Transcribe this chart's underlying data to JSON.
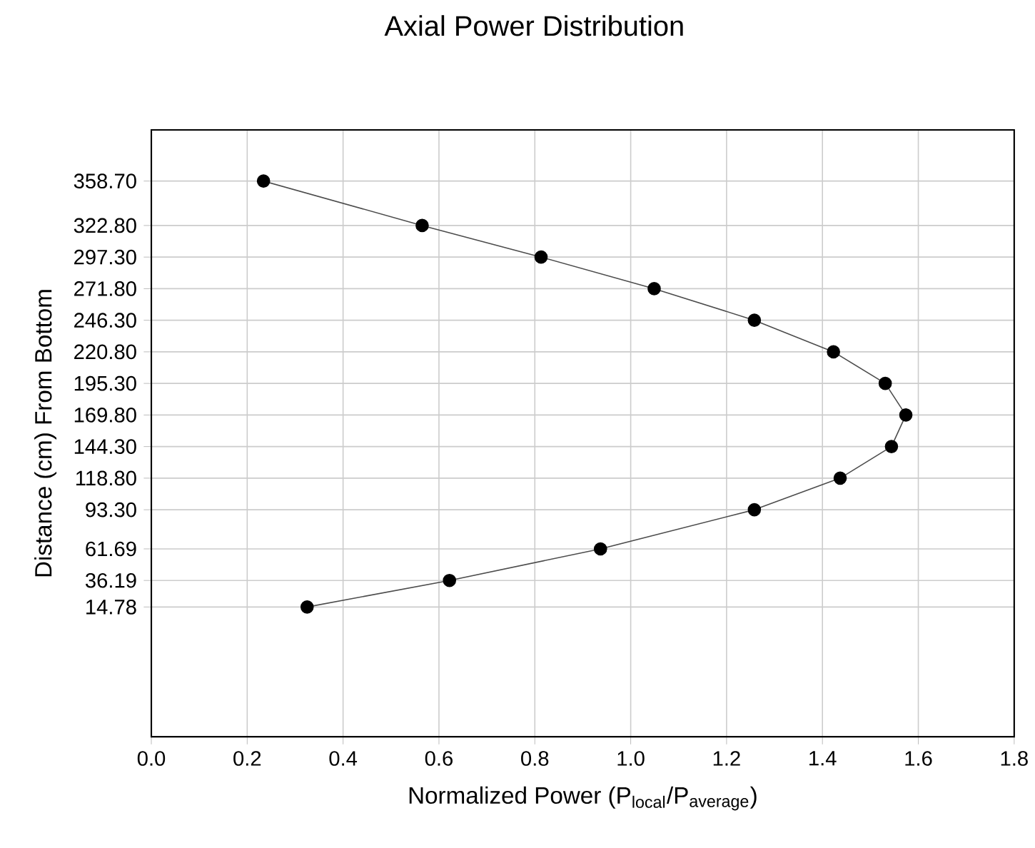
{
  "chart_data": {
    "type": "line",
    "title": "Axial Power Distribution",
    "xlabel": "Normalized Power (P$_{local}$/P$_{average}$)",
    "ylabel": "Distance (cm) From Bottom",
    "series": [
      {
        "color": "#000000",
        "x": [
          0.234,
          0.565,
          0.813,
          1.049,
          1.258,
          1.423,
          1.531,
          1.574,
          1.544,
          1.437,
          1.258,
          0.937,
          0.622,
          0.325
        ],
        "values": [
          358.7,
          322.8,
          297.3,
          271.8,
          246.3,
          220.8,
          195.3,
          169.8,
          144.3,
          118.8,
          93.3,
          61.69,
          36.19,
          14.78
        ]
      }
    ],
    "marker": "circle",
    "line_style": "solid",
    "grid": true,
    "xlim": [
      0,
      1.8
    ],
    "ylim": [
      -90,
      400
    ],
    "xticks": [
      {
        "value": 0,
        "label": "0.0"
      },
      {
        "value": 0.2,
        "label": "0.2"
      },
      {
        "value": 0.4,
        "label": "0.4"
      },
      {
        "value": 0.6,
        "label": "0.6"
      },
      {
        "value": 0.8,
        "label": "0.8"
      },
      {
        "value": 1,
        "label": "1.0"
      },
      {
        "value": 1.2,
        "label": "1.2"
      },
      {
        "value": 1.4,
        "label": "1.4"
      },
      {
        "value": 1.6,
        "label": "1.6"
      },
      {
        "value": 1.8,
        "label": "1.8"
      }
    ],
    "yticks": [
      14.78,
      36.19,
      61.69,
      {
        "value": 93.3,
        "label": "93.30"
      },
      {
        "value": 118.8,
        "label": "118.80"
      },
      {
        "value": 144.3,
        "label": "144.30"
      },
      {
        "value": 169.8,
        "label": "169.80"
      },
      {
        "value": 195.3,
        "label": "195.30"
      },
      {
        "value": 220.8,
        "label": "220.80"
      },
      {
        "value": 246.3,
        "label": "246.30"
      },
      {
        "value": 271.8,
        "label": "271.80"
      },
      {
        "value": 297.3,
        "label": "297.30"
      },
      {
        "value": 322.8,
        "label": "322.80"
      },
      {
        "value": 358.7,
        "label": "358.70"
      }
    ]
  }
}
